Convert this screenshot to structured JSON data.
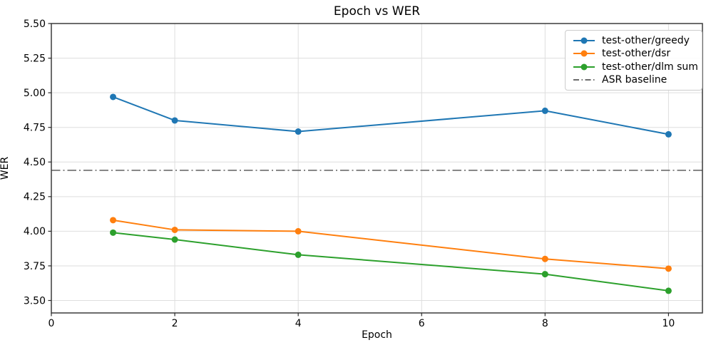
{
  "chart_data": {
    "type": "line",
    "title": "Epoch vs WER",
    "xlabel": "Epoch",
    "ylabel": "WER",
    "x": [
      1,
      2,
      4,
      8,
      10
    ],
    "series": [
      {
        "name": "test-other/greedy",
        "color": "#1f77b4",
        "values": [
          4.97,
          4.8,
          4.72,
          4.87,
          4.7
        ]
      },
      {
        "name": "test-other/dsr",
        "color": "#ff7f0e",
        "values": [
          4.08,
          4.01,
          4.0,
          3.8,
          3.73
        ]
      },
      {
        "name": "test-other/dlm sum",
        "color": "#2ca02c",
        "values": [
          3.99,
          3.94,
          3.83,
          3.69,
          3.57
        ]
      }
    ],
    "baseline": {
      "name": "ASR baseline",
      "value": 4.44,
      "color": "#6b6b6b",
      "style": "dashdot"
    },
    "xlim": [
      0,
      10.55
    ],
    "ylim": [
      3.41,
      5.5
    ],
    "xticks": [
      0,
      2,
      4,
      6,
      8,
      10
    ],
    "yticks": [
      3.5,
      3.75,
      4.0,
      4.25,
      4.5,
      4.75,
      5.0,
      5.25,
      5.5
    ],
    "grid": true,
    "legend_position": "upper right",
    "style": {
      "grid_color": "#dedede",
      "spine_color": "#3b3b3b",
      "tick_color": "#2a2a2a",
      "text_color": "#000000",
      "background": "#ffffff"
    }
  }
}
